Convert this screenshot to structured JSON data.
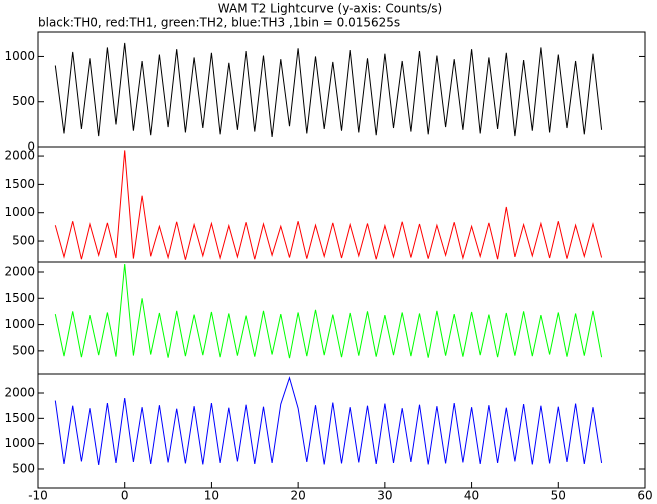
{
  "chart_data": [
    {
      "type": "line",
      "title": "WAM T2 Lightcurve (y-axis: Counts/s)",
      "subtitle": "black:TH0, red:TH1, green:TH2, blue:TH3 ,1bin = 0.015625s",
      "x": [
        -8,
        -7,
        -6,
        -5,
        -4,
        -3,
        -2,
        -1,
        0,
        1,
        2,
        3,
        4,
        5,
        6,
        7,
        8,
        9,
        10,
        11,
        12,
        13,
        14,
        15,
        16,
        17,
        18,
        19,
        20,
        21,
        22,
        23,
        24,
        25,
        26,
        27,
        28,
        29,
        30,
        31,
        32,
        33,
        34,
        35,
        36,
        37,
        38,
        39,
        40,
        41,
        42,
        43,
        44,
        45,
        46,
        47,
        48,
        49,
        50,
        51,
        52,
        53,
        54,
        55
      ],
      "series": [
        {
          "name": "TH0",
          "color": "#000000",
          "values": [
            900,
            150,
            1050,
            200,
            980,
            120,
            1100,
            250,
            1150,
            180,
            950,
            130,
            1020,
            220,
            1080,
            160,
            990,
            210,
            1040,
            140,
            930,
            190,
            1060,
            170,
            1010,
            110,
            970,
            230,
            1090,
            150,
            1000,
            200,
            940,
            180,
            1070,
            160,
            980,
            130,
            1030,
            210,
            950,
            170,
            1060,
            140,
            1010,
            220,
            970,
            190,
            1080,
            150,
            990,
            200,
            1040,
            120,
            960,
            180,
            1100,
            160,
            1020,
            210,
            950,
            140,
            1030,
            190
          ]
        }
      ],
      "xlim": [
        -10,
        60
      ],
      "ylim": [
        0,
        1270
      ],
      "yticks": [
        0,
        500,
        1000
      ]
    },
    {
      "type": "line",
      "x": [
        -8,
        -7,
        -6,
        -5,
        -4,
        -3,
        -2,
        -1,
        0,
        1,
        2,
        3,
        4,
        5,
        6,
        7,
        8,
        9,
        10,
        11,
        12,
        13,
        14,
        15,
        16,
        17,
        18,
        19,
        20,
        21,
        22,
        23,
        24,
        25,
        26,
        27,
        28,
        29,
        30,
        31,
        32,
        33,
        34,
        35,
        36,
        37,
        38,
        39,
        40,
        41,
        42,
        43,
        44,
        45,
        46,
        47,
        48,
        49,
        50,
        51,
        52,
        53,
        54,
        55
      ],
      "series": [
        {
          "name": "TH1",
          "color": "#ff0000",
          "values": [
            780,
            220,
            850,
            180,
            800,
            250,
            820,
            200,
            2100,
            190,
            1300,
            230,
            760,
            210,
            840,
            170,
            790,
            240,
            810,
            200,
            770,
            220,
            830,
            180,
            800,
            250,
            760,
            210,
            850,
            190,
            780,
            230,
            820,
            200,
            790,
            240,
            810,
            180,
            770,
            220,
            840,
            210,
            800,
            190,
            780,
            250,
            830,
            200,
            760,
            230,
            820,
            180,
            1100,
            220,
            790,
            240,
            810,
            200,
            850,
            190,
            780,
            230,
            800,
            210
          ]
        }
      ],
      "xlim": [
        -10,
        60
      ],
      "ylim": [
        130,
        2160
      ],
      "yticks": [
        500,
        1000,
        1500,
        2000
      ]
    },
    {
      "type": "line",
      "x": [
        -8,
        -7,
        -6,
        -5,
        -4,
        -3,
        -2,
        -1,
        0,
        1,
        2,
        3,
        4,
        5,
        6,
        7,
        8,
        9,
        10,
        11,
        12,
        13,
        14,
        15,
        16,
        17,
        18,
        19,
        20,
        21,
        22,
        23,
        24,
        25,
        26,
        27,
        28,
        29,
        30,
        31,
        32,
        33,
        34,
        35,
        36,
        37,
        38,
        39,
        40,
        41,
        42,
        43,
        44,
        45,
        46,
        47,
        48,
        49,
        50,
        51,
        52,
        53,
        54,
        55
      ],
      "series": [
        {
          "name": "TH2",
          "color": "#00ff00",
          "values": [
            1200,
            400,
            1250,
            380,
            1180,
            420,
            1230,
            390,
            2150,
            410,
            1500,
            430,
            1220,
            370,
            1260,
            400,
            1190,
            420,
            1240,
            380,
            1210,
            410,
            1170,
            390,
            1260,
            430,
            1200,
            360,
            1230,
            400,
            1280,
            420,
            1190,
            380,
            1220,
            410,
            1250,
            390,
            1180,
            420,
            1230,
            400,
            1210,
            370,
            1260,
            410,
            1200,
            390,
            1240,
            420,
            1190,
            380,
            1220,
            410,
            1250,
            400,
            1180,
            430,
            1230,
            390,
            1210,
            410,
            1260,
            380
          ]
        }
      ],
      "xlim": [
        -10,
        60
      ],
      "ylim": [
        60,
        2190
      ],
      "yticks": [
        500,
        1000,
        1500,
        2000
      ]
    },
    {
      "type": "line",
      "x": [
        -8,
        -7,
        -6,
        -5,
        -4,
        -3,
        -2,
        -1,
        0,
        1,
        2,
        3,
        4,
        5,
        6,
        7,
        8,
        9,
        10,
        11,
        12,
        13,
        14,
        15,
        16,
        17,
        18,
        19,
        20,
        21,
        22,
        23,
        24,
        25,
        26,
        27,
        28,
        29,
        30,
        31,
        32,
        33,
        34,
        35,
        36,
        37,
        38,
        39,
        40,
        41,
        42,
        43,
        44,
        45,
        46,
        47,
        48,
        49,
        50,
        51,
        52,
        53,
        54,
        55
      ],
      "series": [
        {
          "name": "TH3",
          "color": "#0000ff",
          "values": [
            1850,
            600,
            1750,
            650,
            1700,
            580,
            1800,
            620,
            1900,
            640,
            1720,
            600,
            1760,
            630,
            1690,
            610,
            1740,
            590,
            1800,
            620,
            1710,
            650,
            1770,
            600,
            1730,
            620,
            1780,
            2300,
            1700,
            640,
            1760,
            590,
            1810,
            610,
            1720,
            630,
            1750,
            600,
            1790,
            620,
            1700,
            640,
            1770,
            590,
            1740,
            610,
            1800,
            630,
            1720,
            600,
            1760,
            620,
            1710,
            650,
            1780,
            590,
            1750,
            610,
            1730,
            640,
            1790,
            600,
            1720,
            620
          ]
        }
      ],
      "xlim": [
        -10,
        60
      ],
      "ylim": [
        125,
        2375
      ],
      "yticks": [
        500,
        1000,
        1500,
        2000
      ],
      "xticks": [
        -10,
        0,
        10,
        20,
        30,
        40,
        50,
        60
      ]
    }
  ]
}
